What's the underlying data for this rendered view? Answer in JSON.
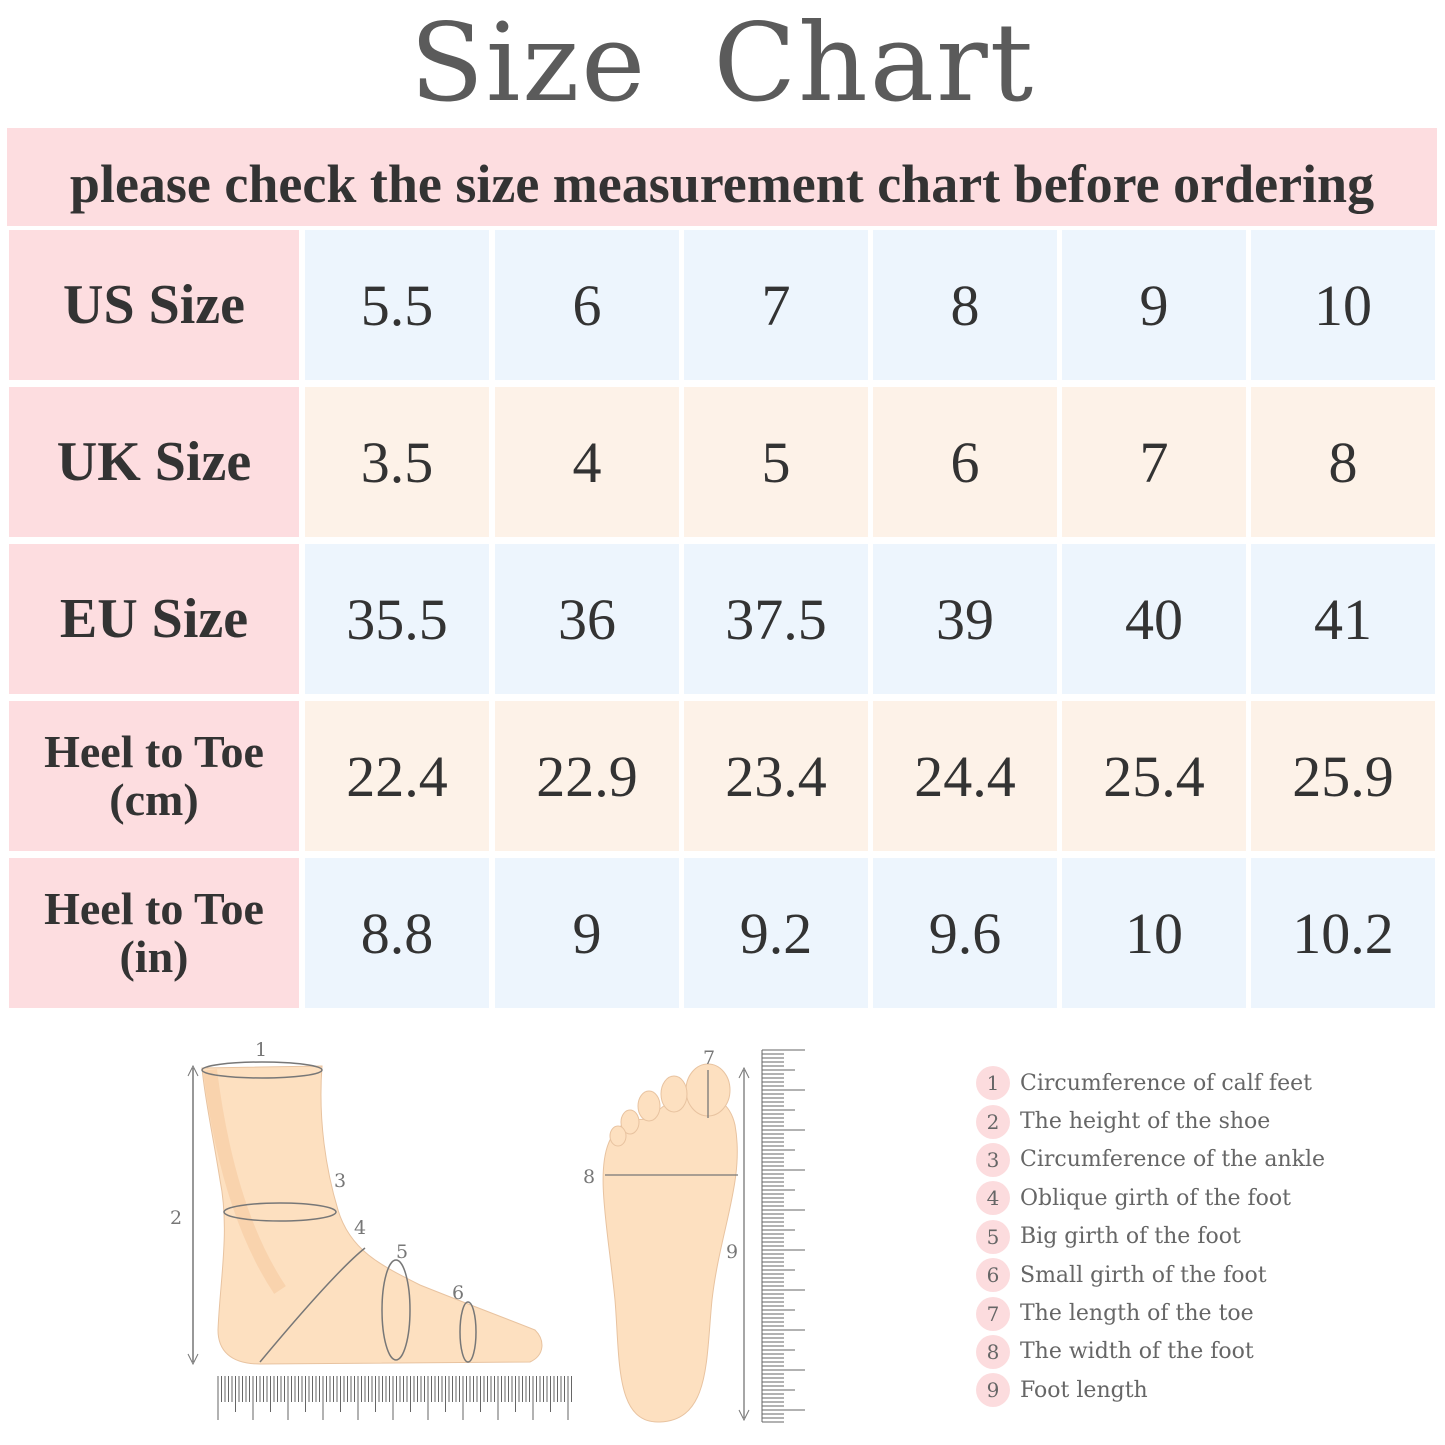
{
  "title": "Size  Chart",
  "banner": "please check the size measurement chart before ordering",
  "colors": {
    "title": "#5b5b5b",
    "header_bg": "#fddde0",
    "row_blue": "#edf5fd",
    "row_peach": "#fdf2e8",
    "legend_circle": "#fcdcde"
  },
  "table": {
    "rows": [
      {
        "label": "US Size",
        "values": [
          "5.5",
          "6",
          "7",
          "8",
          "9",
          "10"
        ]
      },
      {
        "label": "UK Size",
        "values": [
          "3.5",
          "4",
          "5",
          "6",
          "7",
          "8"
        ]
      },
      {
        "label": "EU Size",
        "values": [
          "35.5",
          "36",
          "37.5",
          "39",
          "40",
          "41"
        ]
      },
      {
        "label_line1": "Heel to Toe",
        "label_line2": "(cm)",
        "values": [
          "22.4",
          "22.9",
          "23.4",
          "24.4",
          "25.4",
          "25.9"
        ]
      },
      {
        "label_line1": "Heel to Toe",
        "label_line2": "(in)",
        "values": [
          "8.8",
          "9",
          "9.2",
          "9.6",
          "10",
          "10.2"
        ]
      }
    ]
  },
  "diagram": {
    "marks": [
      "1",
      "2",
      "3",
      "4",
      "5",
      "6",
      "7",
      "8",
      "9"
    ]
  },
  "legend": [
    {
      "n": "1",
      "text": "Circumference of calf feet"
    },
    {
      "n": "2",
      "text": "The height of the shoe"
    },
    {
      "n": "3",
      "text": "Circumference of the ankle"
    },
    {
      "n": "4",
      "text": "Oblique girth of the foot"
    },
    {
      "n": "5",
      "text": "Big girth of the foot"
    },
    {
      "n": "6",
      "text": "Small girth of the foot"
    },
    {
      "n": "7",
      "text": "The length of the toe"
    },
    {
      "n": "8",
      "text": "The width of the foot"
    },
    {
      "n": "9",
      "text": "Foot length"
    }
  ]
}
